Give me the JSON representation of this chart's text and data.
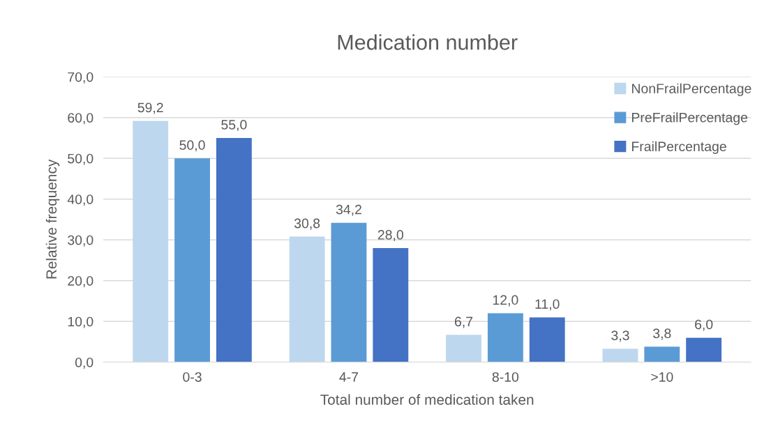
{
  "chart_data": {
    "type": "bar",
    "title": "Medication number",
    "xlabel": "Total number of medication taken",
    "ylabel": "Relative frequency",
    "categories": [
      "0-3",
      "4-7",
      "8-10",
      ">10"
    ],
    "series": [
      {
        "name": "NonFrailPercentage",
        "color": "#bdd7ee",
        "values": [
          59.2,
          30.8,
          6.7,
          3.3
        ],
        "value_labels": [
          "59,2",
          "30,8",
          "6,7",
          "3,3"
        ]
      },
      {
        "name": "PreFrailPercentage",
        "color": "#5b9bd5",
        "values": [
          50.0,
          34.2,
          12.0,
          3.8
        ],
        "value_labels": [
          "50,0",
          "34,2",
          "12,0",
          "3,8"
        ]
      },
      {
        "name": "FrailPercentage",
        "color": "#4472c4",
        "values": [
          55.0,
          28.0,
          11.0,
          6.0
        ],
        "value_labels": [
          "55,0",
          "28,0",
          "11,0",
          "6,0"
        ]
      }
    ],
    "ylim": [
      0,
      70
    ],
    "yticks": [
      {
        "value": 0,
        "label": "0,0"
      },
      {
        "value": 10,
        "label": "10,0"
      },
      {
        "value": 20,
        "label": "20,0"
      },
      {
        "value": 30,
        "label": "30,0"
      },
      {
        "value": 40,
        "label": "40,0"
      },
      {
        "value": 50,
        "label": "50,0"
      },
      {
        "value": 60,
        "label": "60,0"
      },
      {
        "value": 70,
        "label": "70,0"
      }
    ],
    "grid": "y",
    "legend": "top right"
  }
}
